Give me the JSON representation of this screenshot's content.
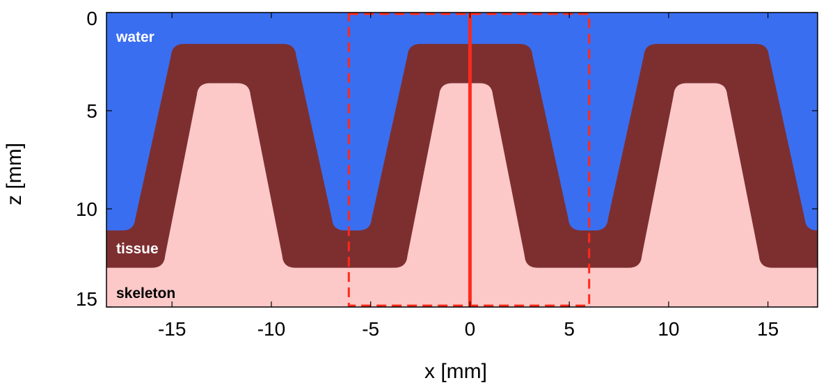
{
  "chart_data": {
    "type": "heatmap",
    "xlabel": "x [mm]",
    "ylabel": "z [mm]",
    "xlim": [
      -18.3,
      17.5
    ],
    "ylim": [
      0,
      15
    ],
    "y_inverted": true,
    "x_ticks": [
      -15,
      -10,
      -5,
      0,
      5,
      10,
      15
    ],
    "x_tick_labels": [
      "-15",
      "-10",
      "-5",
      "0",
      "5",
      "10",
      "15"
    ],
    "y_ticks": [
      0,
      5,
      10,
      15
    ],
    "y_tick_labels": [
      "0",
      "5",
      "10",
      "15"
    ],
    "colors": {
      "water": "#3a6ef0",
      "tissue": "#7d2f30",
      "skeleton": "#fcc8c8",
      "marker": "#ff2a1a",
      "label_text_light": "#ffffff",
      "label_text_dark": "#000000"
    },
    "regions": [
      {
        "name": "water",
        "label": "water",
        "label_color": "#ffffff"
      },
      {
        "name": "tissue",
        "label": "tissue",
        "label_color": "#ffffff"
      },
      {
        "name": "skeleton",
        "label": "skeleton",
        "label_color": "#000000"
      }
    ],
    "tissue_profile": {
      "description_units": "mm",
      "period": 11.9,
      "peak_centers": [
        -11.9,
        0,
        11.9
      ],
      "top_z": 1.6,
      "base_z": 11.1,
      "top_half_width": 3.1,
      "base_half_width": 5.0
    },
    "skeleton_profile": {
      "peak_centers": [
        -12.4,
        -0.2,
        11.6
      ],
      "top_z": 3.6,
      "base_z": 13.0,
      "top_half_width": 1.3,
      "base_half_width": 3.0
    },
    "highlight_box": {
      "x": [
        -6.1,
        6.0
      ],
      "z": [
        0,
        15
      ],
      "style": "dashed"
    },
    "center_line": {
      "x": 0,
      "z": [
        0,
        15
      ]
    }
  }
}
